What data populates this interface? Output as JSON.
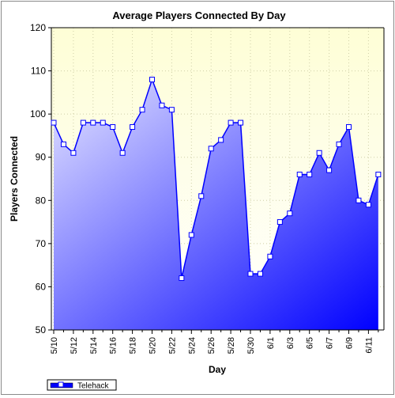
{
  "chart_data": {
    "type": "area",
    "title": "Average Players Connected By Day",
    "xlabel": "Day",
    "ylabel": "Players Connected",
    "ylim": [
      50,
      120
    ],
    "yticks": [
      50,
      60,
      70,
      80,
      90,
      100,
      110,
      120
    ],
    "grid": true,
    "legend_position": "bottom-left",
    "x": [
      "5/10",
      "5/11",
      "5/12",
      "5/13",
      "5/14",
      "5/15",
      "5/16",
      "5/17",
      "5/18",
      "5/19",
      "5/20",
      "5/21",
      "5/22",
      "5/23",
      "5/24",
      "5/25",
      "5/26",
      "5/27",
      "5/28",
      "5/29",
      "5/30",
      "5/31",
      "6/1",
      "6/2",
      "6/3",
      "6/4",
      "6/5",
      "6/6",
      "6/7",
      "6/8",
      "6/9",
      "6/10",
      "6/11",
      "6/12"
    ],
    "tick_labels": [
      "5/10",
      "5/12",
      "5/14",
      "5/16",
      "5/18",
      "5/20",
      "5/22",
      "5/24",
      "5/26",
      "5/28",
      "5/30",
      "6/1",
      "6/3",
      "6/5",
      "6/7",
      "6/9",
      "6/11"
    ],
    "series": [
      {
        "name": "Telehack",
        "color": "#0000ff",
        "values": [
          98,
          93,
          91,
          98,
          98,
          98,
          97,
          91,
          97,
          101,
          108,
          102,
          101,
          62,
          72,
          81,
          92,
          94,
          98,
          98,
          63,
          63,
          67,
          75,
          77,
          86,
          86,
          91,
          87,
          93,
          97,
          80,
          79,
          86
        ]
      }
    ],
    "colors": {
      "plot_bg_top": "#fefed8",
      "area_top_left": "#e4e4ff",
      "area_bottom_right": "#0000ff",
      "line": "#0000ff",
      "grid": "#c8c8a0"
    }
  }
}
